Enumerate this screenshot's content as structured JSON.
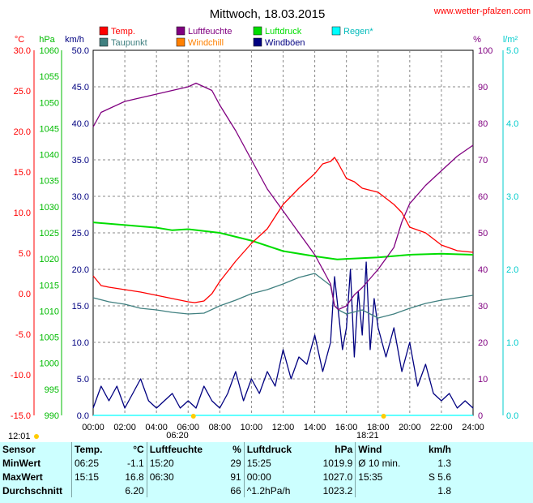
{
  "page": {
    "title": "Mittwoch, 18.03.2015",
    "watermark": "www.wetter-pfalzen.com"
  },
  "legend": [
    {
      "label": "Temp.",
      "color": "#ff0000"
    },
    {
      "label": "Taupunkt",
      "color": "#408080"
    },
    {
      "label": "Luftfeuchte",
      "color": "#800080"
    },
    {
      "label": "Windchill",
      "color": "#ff8000"
    },
    {
      "label": "Luftdruck",
      "color": "#00dd00"
    },
    {
      "label": "Windböen",
      "color": "#000080"
    },
    {
      "label": "Regen*",
      "color": "#00ffff"
    }
  ],
  "sun": {
    "rise_time": "06:20",
    "set_time": "18:21",
    "moon_time": "12:01",
    "rise_hour": 6.333,
    "set_hour": 18.35
  },
  "chart_data": {
    "type": "line",
    "x_range": [
      "00:00",
      "24:00"
    ],
    "x_ticks": [
      "00:00",
      "02:00",
      "04:00",
      "06:00",
      "08:00",
      "10:00",
      "12:00",
      "14:00",
      "16:00",
      "18:00",
      "20:00",
      "22:00",
      "24:00"
    ],
    "grid": true,
    "axes": {
      "temp": {
        "unit": "°C",
        "color": "#ff0000",
        "min": -15,
        "max": 30,
        "ticks": [
          "30.0",
          "25.0",
          "20.0",
          "15.0",
          "10.0",
          "5.0",
          "0.0",
          "-5.0",
          "-10.0",
          "-15.0"
        ]
      },
      "pressure": {
        "unit": "hPa",
        "color": "#00bb00",
        "min": 990,
        "max": 1060,
        "ticks": [
          "1060",
          "1055",
          "1050",
          "1045",
          "1040",
          "1035",
          "1030",
          "1025",
          "1020",
          "1015",
          "1010",
          "1005",
          "1000",
          "995",
          "990"
        ]
      },
      "wind": {
        "unit": "km/h",
        "color": "#000080",
        "min": 0,
        "max": 50,
        "ticks": [
          "50.0",
          "45.0",
          "40.0",
          "35.0",
          "30.0",
          "25.0",
          "20.0",
          "15.0",
          "10.0",
          "5.0",
          "0.0"
        ]
      },
      "humidity": {
        "unit": "%",
        "color": "#800080",
        "min": 0,
        "max": 100,
        "ticks": [
          "100",
          "90",
          "80",
          "70",
          "60",
          "50",
          "40",
          "30",
          "20",
          "10",
          "0"
        ]
      },
      "rain": {
        "unit": "l/m²",
        "color": "#00cccc",
        "min": 0,
        "max": 5,
        "ticks": [
          "5.0",
          "4.0",
          "3.0",
          "2.0",
          "1.0",
          "0.0"
        ]
      }
    },
    "series": [
      {
        "name": "Temp.",
        "axis": "temp",
        "x": [
          0,
          0.5,
          1,
          2,
          3,
          4,
          5,
          5.5,
          6,
          6.42,
          7,
          7.5,
          8,
          9,
          10,
          11,
          11.5,
          12,
          13,
          14,
          14.5,
          15,
          15.25,
          15.5,
          16,
          16.5,
          17,
          18,
          19,
          19.5,
          20,
          21,
          22,
          23,
          24
        ],
        "y": [
          2.2,
          1.0,
          0.8,
          0.5,
          0.2,
          -0.2,
          -0.6,
          -0.8,
          -1.0,
          -1.1,
          -0.9,
          0.0,
          1.5,
          4.0,
          6.2,
          8.0,
          9.5,
          11.0,
          13.0,
          14.8,
          16.0,
          16.3,
          16.8,
          16.0,
          14.2,
          13.8,
          13.0,
          12.5,
          11.0,
          10.0,
          8.2,
          7.5,
          6.0,
          5.3,
          5.1
        ]
      },
      {
        "name": "Taupunkt",
        "axis": "temp",
        "x": [
          0,
          1,
          2,
          3,
          4,
          5,
          6,
          7,
          8,
          9,
          10,
          11,
          12,
          13,
          14,
          15,
          15.25,
          15.5,
          16,
          17,
          18,
          19,
          20,
          21,
          22,
          23,
          24
        ],
        "y": [
          -0.5,
          -1.0,
          -1.3,
          -1.8,
          -2.0,
          -2.3,
          -2.5,
          -2.4,
          -1.5,
          -0.8,
          0.0,
          0.5,
          1.2,
          2.0,
          2.5,
          1.0,
          -1.5,
          -2.0,
          -2.5,
          -2.0,
          -3.0,
          -2.5,
          -1.8,
          -1.2,
          -0.8,
          -0.5,
          -0.2
        ]
      },
      {
        "name": "Luftfeuchte",
        "axis": "humidity",
        "x": [
          0,
          0.5,
          1,
          2,
          3,
          4,
          5,
          6,
          6.5,
          7,
          7.5,
          8,
          9,
          10,
          11,
          12,
          13,
          14,
          14.5,
          15,
          15.25,
          15.5,
          16,
          16.5,
          17,
          18,
          19,
          19.5,
          20,
          21,
          22,
          23,
          24
        ],
        "y": [
          79,
          83,
          84,
          86,
          87,
          88,
          89,
          90,
          91,
          90,
          89,
          85,
          78,
          70,
          62,
          56,
          50,
          44,
          40,
          36,
          30,
          29,
          30,
          33,
          35,
          40,
          46,
          53,
          58,
          63,
          67,
          71,
          74
        ]
      },
      {
        "name": "Luftdruck",
        "axis": "pressure",
        "x": [
          0,
          2,
          4,
          5,
          6,
          8,
          10,
          12,
          14,
          15.42,
          16,
          18,
          20,
          22,
          24
        ],
        "y": [
          1027,
          1026.5,
          1026,
          1025.5,
          1025.7,
          1025,
          1023.5,
          1021.5,
          1020.5,
          1019.9,
          1020,
          1020.3,
          1020.8,
          1021,
          1020.8
        ]
      },
      {
        "name": "Windböen",
        "axis": "wind",
        "x": [
          0,
          0.5,
          1,
          1.5,
          2,
          2.5,
          3,
          3.5,
          4,
          4.5,
          5,
          5.5,
          6,
          6.5,
          7,
          7.5,
          8,
          8.5,
          9,
          9.5,
          10,
          10.5,
          11,
          11.5,
          12,
          12.5,
          13,
          13.5,
          14,
          14.5,
          15,
          15.25,
          15.5,
          15.75,
          16,
          16.25,
          16.5,
          16.75,
          17,
          17.25,
          17.5,
          17.75,
          18,
          18.5,
          19,
          19.5,
          20,
          20.5,
          21,
          21.5,
          22,
          22.5,
          23,
          23.5,
          24
        ],
        "y": [
          1,
          4,
          2,
          4,
          1,
          3,
          5,
          2,
          1,
          2,
          3,
          1,
          2,
          1,
          4,
          2,
          1,
          3,
          6,
          2,
          5,
          3,
          6,
          4,
          9,
          5,
          8,
          7,
          11,
          6,
          10,
          19,
          14,
          9,
          12,
          20,
          8,
          17,
          11,
          21,
          9,
          16,
          12,
          8,
          12,
          6,
          10,
          4,
          7,
          3,
          2,
          3,
          1,
          2,
          1
        ]
      },
      {
        "name": "Regen*",
        "axis": "rain",
        "x": [
          0,
          24
        ],
        "y": [
          0,
          0
        ]
      }
    ]
  },
  "stats": {
    "headers": {
      "sensor": "Sensor",
      "temp": "Temp.",
      "temp_unit": "°C",
      "hum": "Luftfeuchte",
      "hum_unit": "%",
      "pres": "Luftdruck",
      "pres_unit": "hPa",
      "wind": "Wind",
      "wind_unit": "km/h"
    },
    "rows": [
      {
        "label": "MinWert",
        "temp_time": "06:25",
        "temp_val": "-1.1",
        "hum_time": "15:20",
        "hum_val": "29",
        "pres_time": "15:25",
        "pres_val": "1019.9",
        "wind_time": "Ø 10 min.",
        "wind_val": "1.3"
      },
      {
        "label": "MaxWert",
        "temp_time": "15:15",
        "temp_val": "16.8",
        "hum_time": "06:30",
        "hum_val": "91",
        "pres_time": "00:00",
        "pres_val": "1027.0",
        "wind_time": "15:35",
        "wind_val": "S 5.6"
      },
      {
        "label": "Durchschnitt",
        "temp_time": "",
        "temp_val": "6.20",
        "hum_time": "",
        "hum_val": "66",
        "pres_time": "^1.2hPa/h",
        "pres_val": "1023.2",
        "wind_time": "",
        "wind_val": "1.8"
      }
    ]
  }
}
